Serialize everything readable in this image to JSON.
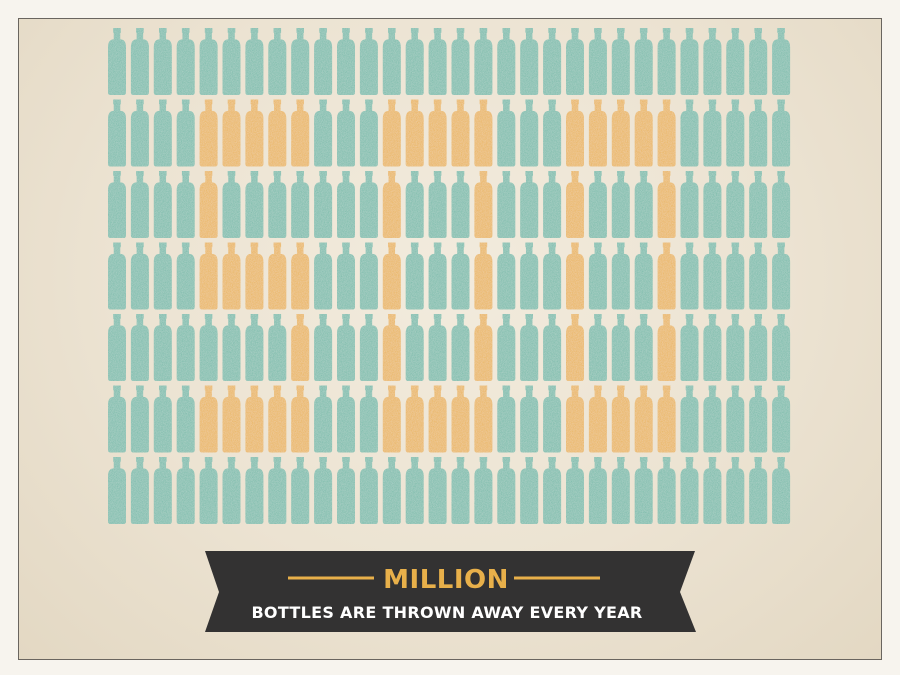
{
  "infographic": {
    "headline": "MILLION",
    "subline": "BOTTLES ARE THROWN AWAY EVERY YEAR",
    "digits": [
      "5",
      "0",
      "0"
    ]
  },
  "colors": {
    "background": "#ece3d2",
    "bottle_default": "#6fb8a6",
    "bottle_highlight": "#e8b04a",
    "banner": "#333232",
    "banner_text": "#ffffff",
    "headline": "#e8b04a"
  },
  "icons": {
    "bottle": "bottle-icon"
  }
}
